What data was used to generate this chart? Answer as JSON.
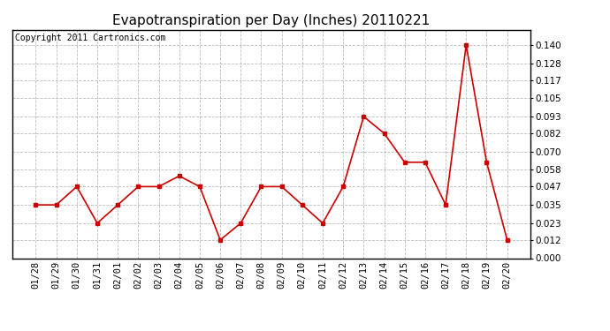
{
  "title": "Evapotranspiration per Day (Inches) 20110221",
  "copyright_text": "Copyright 2011 Cartronics.com",
  "x_labels": [
    "01/28",
    "01/29",
    "01/30",
    "01/31",
    "02/01",
    "02/02",
    "02/03",
    "02/04",
    "02/05",
    "02/06",
    "02/07",
    "02/08",
    "02/09",
    "02/10",
    "02/11",
    "02/12",
    "02/13",
    "02/14",
    "02/15",
    "02/16",
    "02/17",
    "02/18",
    "02/19",
    "02/20"
  ],
  "y_values": [
    0.035,
    0.035,
    0.047,
    0.023,
    0.035,
    0.047,
    0.047,
    0.054,
    0.047,
    0.012,
    0.023,
    0.047,
    0.047,
    0.035,
    0.023,
    0.047,
    0.093,
    0.082,
    0.063,
    0.063,
    0.035,
    0.14,
    0.063,
    0.012
  ],
  "line_color": "#cc0000",
  "marker": "s",
  "marker_size": 2.5,
  "line_width": 1.2,
  "ylim": [
    0.0,
    0.15
  ],
  "yticks": [
    0.0,
    0.012,
    0.023,
    0.035,
    0.047,
    0.058,
    0.07,
    0.082,
    0.093,
    0.105,
    0.117,
    0.128,
    0.14
  ],
  "background_color": "#ffffff",
  "grid_color": "#bbbbbb",
  "title_fontsize": 11,
  "copyright_fontsize": 7,
  "tick_fontsize": 7.5,
  "border_color": "#000000"
}
